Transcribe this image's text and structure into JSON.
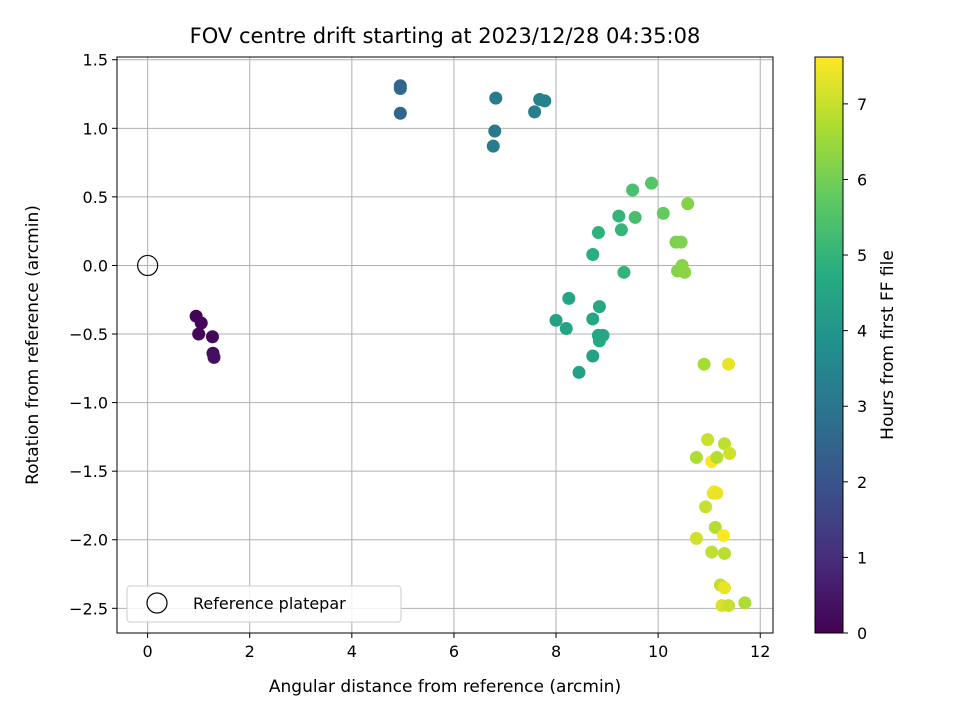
{
  "chart_data": {
    "type": "scatter",
    "title": "FOV centre drift starting at 2023/12/28 04:35:08",
    "xlabel": "Angular distance from reference (arcmin)",
    "ylabel": "Rotation from reference (arcmin)",
    "xlim": [
      -0.6,
      12.25
    ],
    "ylim": [
      -2.68,
      1.52
    ],
    "xticks": [
      0,
      2,
      4,
      6,
      8,
      10,
      12
    ],
    "yticks": [
      -2.5,
      -2.0,
      -1.5,
      -1.0,
      -0.5,
      0.0,
      0.5,
      1.0,
      1.5
    ],
    "xtick_labels": [
      "0",
      "2",
      "4",
      "6",
      "8",
      "10",
      "12"
    ],
    "ytick_labels": [
      "−2.5",
      "−2.0",
      "−1.5",
      "−1.0",
      "−0.5",
      "0.0",
      "0.5",
      "1.0",
      "1.5"
    ],
    "grid": true,
    "legend": {
      "position": "lower-left",
      "entries": [
        "Reference platepar"
      ]
    },
    "reference_point": {
      "x": 0.0,
      "y": 0.0,
      "marker": "open-circle",
      "color": "#000000"
    },
    "colorbar": {
      "label": "Hours from first FF file",
      "range": [
        0,
        7.62
      ],
      "ticks": [
        0,
        1,
        2,
        3,
        4,
        5,
        6,
        7
      ],
      "tick_labels": [
        "0",
        "1",
        "2",
        "3",
        "4",
        "5",
        "6",
        "7"
      ],
      "colormap": "viridis"
    },
    "series": [
      {
        "colored_by": "Hours from first FF file",
        "points": [
          {
            "x": 0.95,
            "y": -0.37,
            "c": 0.05
          },
          {
            "x": 1.05,
            "y": -0.42,
            "c": 0.1
          },
          {
            "x": 1.0,
            "y": -0.5,
            "c": 0.15
          },
          {
            "x": 1.27,
            "y": -0.52,
            "c": 0.2
          },
          {
            "x": 1.28,
            "y": -0.64,
            "c": 0.25
          },
          {
            "x": 1.3,
            "y": -0.67,
            "c": 0.3
          },
          {
            "x": 4.95,
            "y": 1.31,
            "c": 2.5
          },
          {
            "x": 4.95,
            "y": 1.29,
            "c": 2.55
          },
          {
            "x": 4.95,
            "y": 1.11,
            "c": 2.6
          },
          {
            "x": 6.82,
            "y": 1.22,
            "c": 3.15
          },
          {
            "x": 6.8,
            "y": 0.98,
            "c": 3.1
          },
          {
            "x": 6.77,
            "y": 0.87,
            "c": 3.2
          },
          {
            "x": 7.58,
            "y": 1.12,
            "c": 3.3
          },
          {
            "x": 7.68,
            "y": 1.21,
            "c": 3.35
          },
          {
            "x": 7.78,
            "y": 1.2,
            "c": 3.4
          },
          {
            "x": 8.0,
            "y": -0.4,
            "c": 4.4
          },
          {
            "x": 8.2,
            "y": -0.46,
            "c": 4.45
          },
          {
            "x": 8.25,
            "y": -0.24,
            "c": 4.5
          },
          {
            "x": 8.45,
            "y": -0.78,
            "c": 4.35
          },
          {
            "x": 8.72,
            "y": -0.66,
            "c": 4.4
          },
          {
            "x": 8.72,
            "y": -0.39,
            "c": 4.55
          },
          {
            "x": 8.85,
            "y": -0.3,
            "c": 4.6
          },
          {
            "x": 8.83,
            "y": -0.51,
            "c": 4.5
          },
          {
            "x": 8.92,
            "y": -0.51,
            "c": 4.55
          },
          {
            "x": 8.85,
            "y": -0.55,
            "c": 4.6
          },
          {
            "x": 8.72,
            "y": 0.08,
            "c": 4.8
          },
          {
            "x": 8.83,
            "y": 0.24,
            "c": 4.9
          },
          {
            "x": 9.23,
            "y": 0.36,
            "c": 5.0
          },
          {
            "x": 9.28,
            "y": 0.26,
            "c": 5.05
          },
          {
            "x": 9.33,
            "y": -0.05,
            "c": 5.0
          },
          {
            "x": 9.5,
            "y": 0.55,
            "c": 5.4
          },
          {
            "x": 9.55,
            "y": 0.35,
            "c": 5.35
          },
          {
            "x": 9.87,
            "y": 0.6,
            "c": 5.6
          },
          {
            "x": 10.1,
            "y": 0.38,
            "c": 5.8
          },
          {
            "x": 10.35,
            "y": 0.17,
            "c": 6.1
          },
          {
            "x": 10.45,
            "y": 0.17,
            "c": 6.15
          },
          {
            "x": 10.38,
            "y": -0.04,
            "c": 6.2
          },
          {
            "x": 10.47,
            "y": 0.0,
            "c": 6.25
          },
          {
            "x": 10.52,
            "y": -0.05,
            "c": 6.3
          },
          {
            "x": 10.58,
            "y": 0.45,
            "c": 6.2
          },
          {
            "x": 10.9,
            "y": -0.72,
            "c": 6.6
          },
          {
            "x": 11.38,
            "y": -0.72,
            "c": 7.4
          },
          {
            "x": 10.75,
            "y": -1.4,
            "c": 6.7
          },
          {
            "x": 10.97,
            "y": -1.27,
            "c": 7.0
          },
          {
            "x": 11.05,
            "y": -1.43,
            "c": 7.6
          },
          {
            "x": 11.15,
            "y": -1.4,
            "c": 6.8
          },
          {
            "x": 11.3,
            "y": -1.3,
            "c": 6.9
          },
          {
            "x": 11.4,
            "y": -1.37,
            "c": 7.1
          },
          {
            "x": 11.08,
            "y": -1.66,
            "c": 7.3
          },
          {
            "x": 11.1,
            "y": -1.65,
            "c": 7.5
          },
          {
            "x": 11.15,
            "y": -1.66,
            "c": 7.4
          },
          {
            "x": 10.93,
            "y": -1.76,
            "c": 7.0
          },
          {
            "x": 11.12,
            "y": -1.91,
            "c": 6.8
          },
          {
            "x": 10.75,
            "y": -1.99,
            "c": 7.1
          },
          {
            "x": 11.28,
            "y": -1.97,
            "c": 7.6
          },
          {
            "x": 11.05,
            "y": -2.09,
            "c": 6.9
          },
          {
            "x": 11.3,
            "y": -2.1,
            "c": 6.85
          },
          {
            "x": 11.22,
            "y": -2.33,
            "c": 6.95
          },
          {
            "x": 11.3,
            "y": -2.35,
            "c": 7.4
          },
          {
            "x": 11.25,
            "y": -2.48,
            "c": 7.2
          },
          {
            "x": 11.38,
            "y": -2.48,
            "c": 7.0
          },
          {
            "x": 11.7,
            "y": -2.46,
            "c": 6.7
          }
        ]
      }
    ]
  }
}
